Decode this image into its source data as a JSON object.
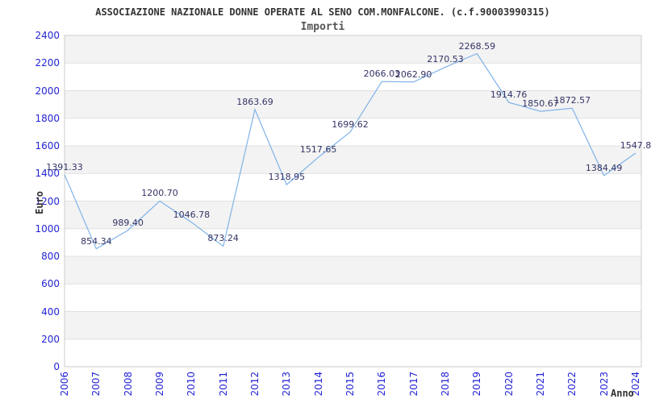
{
  "header": {
    "title": "ASSOCIAZIONE NAZIONALE DONNE OPERATE AL SENO COM.MONFALCONE. (c.f.90003990315)",
    "subtitle": "Importi"
  },
  "chart_data": {
    "type": "line",
    "title": "Importi",
    "xlabel": "Anno",
    "ylabel": "Euro",
    "categories": [
      "2006",
      "2007",
      "2008",
      "2009",
      "2010",
      "2011",
      "2012",
      "2013",
      "2014",
      "2015",
      "2016",
      "2017",
      "2018",
      "2019",
      "2020",
      "2021",
      "2022",
      "2023",
      "2024"
    ],
    "values": [
      1391.33,
      854.34,
      989.4,
      1200.7,
      1046.78,
      873.24,
      1863.69,
      1318.95,
      1517.65,
      1699.62,
      2066.03,
      2062.9,
      2170.53,
      2268.59,
      1914.76,
      1850.67,
      1872.57,
      1384.49,
      1547.8
    ],
    "point_labels": [
      "1391.33",
      "854.34",
      "989.40",
      "1200.70",
      "1046.78",
      "873.24",
      "1863.69",
      "1318.95",
      "1517.65",
      "1699.62",
      "2066.03",
      "2062.90",
      "2170.53",
      "2268.59",
      "1914.76",
      "1850.67",
      "1872.57",
      "1384.49",
      "1547.8"
    ],
    "y_ticks": [
      "0",
      "200",
      "400",
      "600",
      "800",
      "1000",
      "1200",
      "1400",
      "1600",
      "1800",
      "2000",
      "2200",
      "2400"
    ],
    "ylim": [
      0,
      2400
    ],
    "ytick_step": 200,
    "grid": "horizontal-bands",
    "legend": "none",
    "colors": {
      "line": "#7fb3e8",
      "tick_label": "#2323d4",
      "point_label": "#333366",
      "band": "#f3f3f3",
      "gridline": "#e0e0e0",
      "plot_border": "#cccccc",
      "title": "#333333",
      "subtitle": "#555555"
    }
  }
}
